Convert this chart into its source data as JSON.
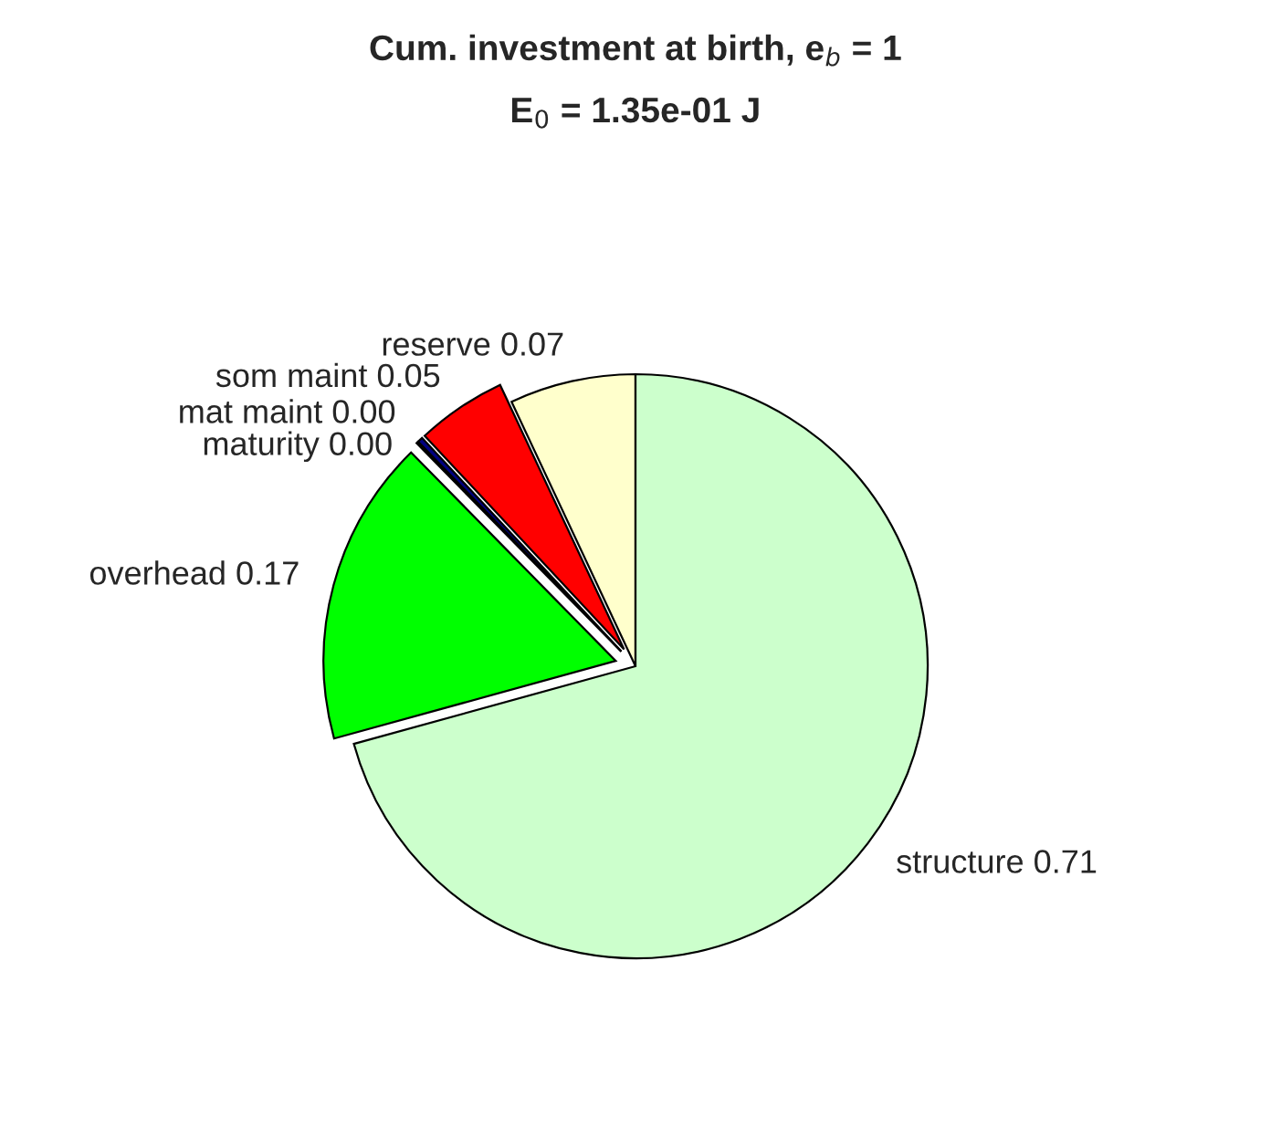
{
  "chart_data": {
    "type": "pie",
    "title": "Cum. investment at birth, e$_{b}$ = 1",
    "subtitle": "E$_{0}$ = 1.35e-01 J",
    "categories": [
      "reserve",
      "som maint",
      "mat maint",
      "maturity",
      "overhead",
      "structure"
    ],
    "values": [
      0.07,
      0.05,
      0.003,
      0.001,
      0.17,
      0.71
    ],
    "value_labels": [
      "0.07",
      "0.05",
      "0.00",
      "0.00",
      "0.17",
      "0.71"
    ],
    "colors": [
      "#ffffcc",
      "#ff0000",
      "#000080",
      "#0000ff",
      "#00ff00",
      "#ccffcc"
    ],
    "legend": false
  }
}
